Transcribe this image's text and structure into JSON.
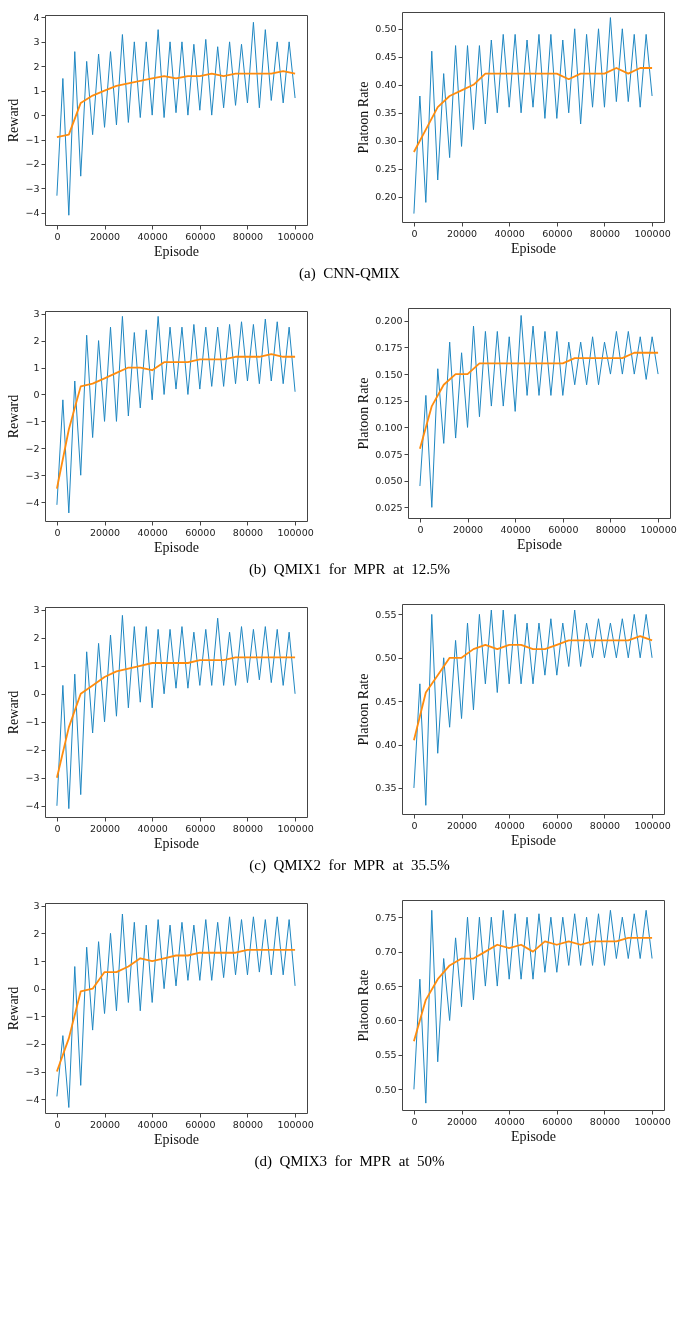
{
  "chart_data": [
    {
      "type": "line",
      "xlabel": "Episode",
      "ylabel": "Reward",
      "annotations": [
        "(a)  CNN-QMIX"
      ],
      "xlim": [
        -5000,
        105000
      ],
      "xticks": [
        0,
        20000,
        40000,
        60000,
        80000,
        100000
      ],
      "ylim": [
        -4.5,
        4.1
      ],
      "yticks": [
        -4,
        -3,
        -2,
        -1,
        0,
        1,
        2,
        3,
        4
      ],
      "x": [
        0,
        2500,
        5000,
        7500,
        10000,
        12500,
        15000,
        17500,
        20000,
        22500,
        25000,
        27500,
        30000,
        32500,
        35000,
        37500,
        40000,
        42500,
        45000,
        47500,
        50000,
        52500,
        55000,
        57500,
        60000,
        62500,
        65000,
        67500,
        70000,
        72500,
        75000,
        77500,
        80000,
        82500,
        85000,
        87500,
        90000,
        92500,
        95000,
        97500,
        100000
      ],
      "series": [
        {
          "color": "#1f87c2",
          "values": [
            -3.3,
            1.5,
            -4.1,
            2.6,
            -2.5,
            2.2,
            -0.8,
            2.5,
            -0.5,
            2.6,
            -0.4,
            3.3,
            -0.3,
            3.0,
            -0.1,
            3.0,
            0.0,
            3.5,
            -0.1,
            3.0,
            0.1,
            3.0,
            0.0,
            2.9,
            0.2,
            3.1,
            0.0,
            2.8,
            0.3,
            3.0,
            0.4,
            2.9,
            0.5,
            3.8,
            0.3,
            3.5,
            0.6,
            3.0,
            0.5,
            3.0,
            0.7
          ]
        },
        {
          "color": "#ff8c0e",
          "x": [
            0,
            5000,
            10000,
            15000,
            20000,
            25000,
            30000,
            35000,
            40000,
            45000,
            50000,
            55000,
            60000,
            65000,
            70000,
            75000,
            80000,
            85000,
            90000,
            95000,
            100000
          ],
          "values": [
            -0.9,
            -0.8,
            0.5,
            0.8,
            1.0,
            1.2,
            1.3,
            1.4,
            1.5,
            1.6,
            1.5,
            1.6,
            1.6,
            1.7,
            1.6,
            1.7,
            1.7,
            1.7,
            1.7,
            1.8,
            1.7
          ]
        }
      ]
    },
    {
      "type": "line",
      "xlabel": "Episode",
      "ylabel": "Platoon Rate",
      "xlim": [
        -5000,
        105000
      ],
      "xticks": [
        0,
        20000,
        40000,
        60000,
        80000,
        100000
      ],
      "ylim": [
        0.155,
        0.53
      ],
      "yticks": [
        {
          "value": 0.2,
          "label": "0.20"
        },
        0.25,
        {
          "value": 0.3,
          "label": "0.30"
        },
        0.35,
        {
          "value": 0.4,
          "label": "0.40"
        },
        0.45,
        {
          "value": 0.5,
          "label": "0.50"
        }
      ],
      "x": [
        0,
        2500,
        5000,
        7500,
        10000,
        12500,
        15000,
        17500,
        20000,
        22500,
        25000,
        27500,
        30000,
        32500,
        35000,
        37500,
        40000,
        42500,
        45000,
        47500,
        50000,
        52500,
        55000,
        57500,
        60000,
        62500,
        65000,
        67500,
        70000,
        72500,
        75000,
        77500,
        80000,
        82500,
        85000,
        87500,
        90000,
        92500,
        95000,
        97500,
        100000
      ],
      "series": [
        {
          "color": "#1f87c2",
          "values": [
            0.17,
            0.38,
            0.19,
            0.46,
            0.23,
            0.42,
            0.27,
            0.47,
            0.29,
            0.47,
            0.32,
            0.47,
            0.33,
            0.48,
            0.35,
            0.49,
            0.36,
            0.49,
            0.35,
            0.48,
            0.36,
            0.49,
            0.34,
            0.49,
            0.34,
            0.48,
            0.35,
            0.5,
            0.33,
            0.49,
            0.36,
            0.5,
            0.36,
            0.52,
            0.37,
            0.5,
            0.37,
            0.49,
            0.36,
            0.49,
            0.38
          ]
        },
        {
          "color": "#ff8c0e",
          "x": [
            0,
            5000,
            10000,
            15000,
            20000,
            25000,
            30000,
            35000,
            40000,
            45000,
            50000,
            55000,
            60000,
            65000,
            70000,
            75000,
            80000,
            85000,
            90000,
            95000,
            100000
          ],
          "values": [
            0.28,
            0.32,
            0.36,
            0.38,
            0.39,
            0.4,
            0.42,
            0.42,
            0.42,
            0.42,
            0.42,
            0.42,
            0.42,
            0.41,
            0.42,
            0.42,
            0.42,
            0.43,
            0.42,
            0.43,
            0.43
          ]
        }
      ]
    },
    {
      "type": "line",
      "xlabel": "Episode",
      "ylabel": "Reward",
      "annotations": [
        "(b)  QMIX1  for  MPR  at  12.5%"
      ],
      "xlim": [
        -5000,
        105000
      ],
      "xticks": [
        0,
        20000,
        40000,
        60000,
        80000,
        100000
      ],
      "ylim": [
        -4.7,
        3.1
      ],
      "yticks": [
        -4,
        -3,
        -2,
        -1,
        0,
        1,
        2,
        3
      ],
      "x": [
        0,
        2500,
        5000,
        7500,
        10000,
        12500,
        15000,
        17500,
        20000,
        22500,
        25000,
        27500,
        30000,
        32500,
        35000,
        37500,
        40000,
        42500,
        45000,
        47500,
        50000,
        52500,
        55000,
        57500,
        60000,
        62500,
        65000,
        67500,
        70000,
        72500,
        75000,
        77500,
        80000,
        82500,
        85000,
        87500,
        90000,
        92500,
        95000,
        97500,
        100000
      ],
      "series": [
        {
          "color": "#1f87c2",
          "values": [
            -4.1,
            -0.2,
            -4.4,
            0.5,
            -3.0,
            2.2,
            -1.6,
            2.0,
            -1.0,
            2.5,
            -1.0,
            2.9,
            -0.8,
            2.3,
            -0.5,
            2.4,
            -0.2,
            2.9,
            0.0,
            2.5,
            0.2,
            2.5,
            0.0,
            2.6,
            0.2,
            2.5,
            0.3,
            2.5,
            0.3,
            2.6,
            0.4,
            2.7,
            0.5,
            2.6,
            0.4,
            2.8,
            0.5,
            2.7,
            0.4,
            2.5,
            0.1
          ]
        },
        {
          "color": "#ff8c0e",
          "x": [
            0,
            5000,
            10000,
            15000,
            20000,
            25000,
            30000,
            35000,
            40000,
            45000,
            50000,
            55000,
            60000,
            65000,
            70000,
            75000,
            80000,
            85000,
            90000,
            95000,
            100000
          ],
          "values": [
            -3.5,
            -1.3,
            0.3,
            0.4,
            0.6,
            0.8,
            1.0,
            1.0,
            0.9,
            1.2,
            1.2,
            1.2,
            1.3,
            1.3,
            1.3,
            1.4,
            1.4,
            1.4,
            1.5,
            1.4,
            1.4
          ]
        }
      ]
    },
    {
      "type": "line",
      "xlabel": "Episode",
      "ylabel": "Platoon Rate",
      "xlim": [
        -5000,
        105000
      ],
      "xticks": [
        0,
        20000,
        40000,
        60000,
        80000,
        100000
      ],
      "ylim": [
        0.015,
        0.212
      ],
      "yticks": [
        0.025,
        {
          "value": 0.05,
          "label": "0.050"
        },
        0.075,
        {
          "value": 0.1,
          "label": "0.100"
        },
        0.125,
        {
          "value": 0.15,
          "label": "0.150"
        },
        0.175,
        {
          "value": 0.2,
          "label": "0.200"
        }
      ],
      "x": [
        0,
        2500,
        5000,
        7500,
        10000,
        12500,
        15000,
        17500,
        20000,
        22500,
        25000,
        27500,
        30000,
        32500,
        35000,
        37500,
        40000,
        42500,
        45000,
        47500,
        50000,
        52500,
        55000,
        57500,
        60000,
        62500,
        65000,
        67500,
        70000,
        72500,
        75000,
        77500,
        80000,
        82500,
        85000,
        87500,
        90000,
        92500,
        95000,
        97500,
        100000
      ],
      "series": [
        {
          "color": "#1f87c2",
          "values": [
            0.045,
            0.13,
            0.025,
            0.155,
            0.085,
            0.18,
            0.09,
            0.17,
            0.1,
            0.195,
            0.11,
            0.19,
            0.12,
            0.19,
            0.12,
            0.185,
            0.115,
            0.205,
            0.13,
            0.195,
            0.13,
            0.19,
            0.13,
            0.19,
            0.13,
            0.18,
            0.14,
            0.18,
            0.14,
            0.185,
            0.14,
            0.18,
            0.15,
            0.19,
            0.15,
            0.19,
            0.15,
            0.185,
            0.145,
            0.185,
            0.15
          ]
        },
        {
          "color": "#ff8c0e",
          "x": [
            0,
            5000,
            10000,
            15000,
            20000,
            25000,
            30000,
            35000,
            40000,
            45000,
            50000,
            55000,
            60000,
            65000,
            70000,
            75000,
            80000,
            85000,
            90000,
            95000,
            100000
          ],
          "values": [
            0.08,
            0.12,
            0.14,
            0.15,
            0.15,
            0.16,
            0.16,
            0.16,
            0.16,
            0.16,
            0.16,
            0.16,
            0.16,
            0.165,
            0.165,
            0.165,
            0.165,
            0.165,
            0.17,
            0.17,
            0.17
          ]
        }
      ]
    },
    {
      "type": "line",
      "xlabel": "Episode",
      "ylabel": "Reward",
      "annotations": [
        "(c)  QMIX2  for  MPR  at  35.5%"
      ],
      "xlim": [
        -5000,
        105000
      ],
      "xticks": [
        0,
        20000,
        40000,
        60000,
        80000,
        100000
      ],
      "ylim": [
        -4.4,
        3.1
      ],
      "yticks": [
        -4,
        -3,
        -2,
        -1,
        0,
        1,
        2,
        3
      ],
      "x": [
        0,
        2500,
        5000,
        7500,
        10000,
        12500,
        15000,
        17500,
        20000,
        22500,
        25000,
        27500,
        30000,
        32500,
        35000,
        37500,
        40000,
        42500,
        45000,
        47500,
        50000,
        52500,
        55000,
        57500,
        60000,
        62500,
        65000,
        67500,
        70000,
        72500,
        75000,
        77500,
        80000,
        82500,
        85000,
        87500,
        90000,
        92500,
        95000,
        97500,
        100000
      ],
      "series": [
        {
          "color": "#1f87c2",
          "values": [
            -4.0,
            0.3,
            -4.1,
            0.7,
            -3.6,
            1.5,
            -1.4,
            1.8,
            -1.0,
            2.1,
            -0.8,
            2.8,
            -0.5,
            2.4,
            -0.3,
            2.4,
            -0.5,
            2.3,
            0.0,
            2.3,
            0.2,
            2.4,
            0.2,
            2.2,
            0.3,
            2.3,
            0.3,
            2.7,
            0.3,
            2.2,
            0.3,
            2.4,
            0.4,
            2.3,
            0.5,
            2.4,
            0.4,
            2.3,
            0.3,
            2.2,
            0.0
          ]
        },
        {
          "color": "#ff8c0e",
          "x": [
            0,
            5000,
            10000,
            15000,
            20000,
            25000,
            30000,
            35000,
            40000,
            45000,
            50000,
            55000,
            60000,
            65000,
            70000,
            75000,
            80000,
            85000,
            90000,
            95000,
            100000
          ],
          "values": [
            -3.0,
            -1.2,
            0.0,
            0.3,
            0.6,
            0.8,
            0.9,
            1.0,
            1.1,
            1.1,
            1.1,
            1.1,
            1.2,
            1.2,
            1.2,
            1.3,
            1.3,
            1.3,
            1.3,
            1.3,
            1.3
          ]
        }
      ]
    },
    {
      "type": "line",
      "xlabel": "Episode",
      "ylabel": "Platoon Rate",
      "xlim": [
        -5000,
        105000
      ],
      "xticks": [
        0,
        20000,
        40000,
        60000,
        80000,
        100000
      ],
      "ylim": [
        0.32,
        0.562
      ],
      "yticks": [
        0.35,
        {
          "value": 0.4,
          "label": "0.40"
        },
        0.45,
        {
          "value": 0.5,
          "label": "0.50"
        },
        0.55
      ],
      "x": [
        0,
        2500,
        5000,
        7500,
        10000,
        12500,
        15000,
        17500,
        20000,
        22500,
        25000,
        27500,
        30000,
        32500,
        35000,
        37500,
        40000,
        42500,
        45000,
        47500,
        50000,
        52500,
        55000,
        57500,
        60000,
        62500,
        65000,
        67500,
        70000,
        72500,
        75000,
        77500,
        80000,
        82500,
        85000,
        87500,
        90000,
        92500,
        95000,
        97500,
        100000
      ],
      "series": [
        {
          "color": "#1f87c2",
          "values": [
            0.35,
            0.47,
            0.33,
            0.55,
            0.39,
            0.5,
            0.42,
            0.52,
            0.43,
            0.54,
            0.44,
            0.55,
            0.47,
            0.555,
            0.46,
            0.555,
            0.47,
            0.55,
            0.47,
            0.54,
            0.47,
            0.54,
            0.48,
            0.545,
            0.48,
            0.54,
            0.49,
            0.555,
            0.49,
            0.54,
            0.5,
            0.545,
            0.5,
            0.54,
            0.5,
            0.545,
            0.5,
            0.55,
            0.5,
            0.55,
            0.5
          ]
        },
        {
          "color": "#ff8c0e",
          "x": [
            0,
            5000,
            10000,
            15000,
            20000,
            25000,
            30000,
            35000,
            40000,
            45000,
            50000,
            55000,
            60000,
            65000,
            70000,
            75000,
            80000,
            85000,
            90000,
            95000,
            100000
          ],
          "values": [
            0.405,
            0.46,
            0.48,
            0.5,
            0.5,
            0.51,
            0.515,
            0.51,
            0.515,
            0.515,
            0.51,
            0.51,
            0.515,
            0.52,
            0.52,
            0.52,
            0.52,
            0.52,
            0.52,
            0.525,
            0.52
          ]
        }
      ]
    },
    {
      "type": "line",
      "xlabel": "Episode",
      "ylabel": "Reward",
      "annotations": [
        "(d)  QMIX3  for  MPR  at  50%"
      ],
      "xlim": [
        -5000,
        105000
      ],
      "xticks": [
        0,
        20000,
        40000,
        60000,
        80000,
        100000
      ],
      "ylim": [
        -4.5,
        3.1
      ],
      "yticks": [
        -4,
        -3,
        -2,
        -1,
        0,
        1,
        2,
        3
      ],
      "x": [
        0,
        2500,
        5000,
        7500,
        10000,
        12500,
        15000,
        17500,
        20000,
        22500,
        25000,
        27500,
        30000,
        32500,
        35000,
        37500,
        40000,
        42500,
        45000,
        47500,
        50000,
        52500,
        55000,
        57500,
        60000,
        62500,
        65000,
        67500,
        70000,
        72500,
        75000,
        77500,
        80000,
        82500,
        85000,
        87500,
        90000,
        92500,
        95000,
        97500,
        100000
      ],
      "series": [
        {
          "color": "#1f87c2",
          "values": [
            -3.9,
            -1.7,
            -4.3,
            0.8,
            -3.5,
            1.5,
            -1.5,
            1.7,
            -0.9,
            2.0,
            -0.8,
            2.7,
            -0.5,
            2.4,
            -0.8,
            2.3,
            -0.5,
            2.5,
            0.0,
            2.3,
            0.1,
            2.4,
            0.3,
            2.3,
            0.3,
            2.5,
            0.3,
            2.4,
            0.4,
            2.6,
            0.5,
            2.5,
            0.5,
            2.6,
            0.6,
            2.5,
            0.5,
            2.6,
            0.5,
            2.5,
            0.1
          ]
        },
        {
          "color": "#ff8c0e",
          "x": [
            0,
            5000,
            10000,
            15000,
            20000,
            25000,
            30000,
            35000,
            40000,
            45000,
            50000,
            55000,
            60000,
            65000,
            70000,
            75000,
            80000,
            85000,
            90000,
            95000,
            100000
          ],
          "values": [
            -3.0,
            -1.8,
            -0.1,
            0.0,
            0.6,
            0.6,
            0.8,
            1.1,
            1.0,
            1.1,
            1.2,
            1.2,
            1.3,
            1.3,
            1.3,
            1.3,
            1.4,
            1.4,
            1.4,
            1.4,
            1.4
          ]
        }
      ]
    },
    {
      "type": "line",
      "xlabel": "Episode",
      "ylabel": "Platoon Rate",
      "xlim": [
        -5000,
        105000
      ],
      "xticks": [
        0,
        20000,
        40000,
        60000,
        80000,
        100000
      ],
      "ylim": [
        0.47,
        0.775
      ],
      "yticks": [
        {
          "value": 0.5,
          "label": "0.50"
        },
        0.55,
        {
          "value": 0.6,
          "label": "0.60"
        },
        0.65,
        {
          "value": 0.7,
          "label": "0.70"
        },
        0.75
      ],
      "x": [
        0,
        2500,
        5000,
        7500,
        10000,
        12500,
        15000,
        17500,
        20000,
        22500,
        25000,
        27500,
        30000,
        32500,
        35000,
        37500,
        40000,
        42500,
        45000,
        47500,
        50000,
        52500,
        55000,
        57500,
        60000,
        62500,
        65000,
        67500,
        70000,
        72500,
        75000,
        77500,
        80000,
        82500,
        85000,
        87500,
        90000,
        92500,
        95000,
        97500,
        100000
      ],
      "series": [
        {
          "color": "#1f87c2",
          "values": [
            0.5,
            0.66,
            0.48,
            0.76,
            0.54,
            0.69,
            0.6,
            0.72,
            0.62,
            0.75,
            0.63,
            0.75,
            0.65,
            0.75,
            0.65,
            0.76,
            0.66,
            0.755,
            0.66,
            0.75,
            0.66,
            0.755,
            0.67,
            0.75,
            0.67,
            0.75,
            0.68,
            0.755,
            0.68,
            0.75,
            0.68,
            0.755,
            0.68,
            0.76,
            0.69,
            0.75,
            0.69,
            0.755,
            0.69,
            0.76,
            0.69
          ]
        },
        {
          "color": "#ff8c0e",
          "x": [
            0,
            5000,
            10000,
            15000,
            20000,
            25000,
            30000,
            35000,
            40000,
            45000,
            50000,
            55000,
            60000,
            65000,
            70000,
            75000,
            80000,
            85000,
            90000,
            95000,
            100000
          ],
          "values": [
            0.57,
            0.63,
            0.66,
            0.68,
            0.69,
            0.69,
            0.7,
            0.71,
            0.705,
            0.71,
            0.7,
            0.715,
            0.71,
            0.715,
            0.71,
            0.715,
            0.715,
            0.715,
            0.72,
            0.72,
            0.72
          ]
        }
      ]
    }
  ]
}
